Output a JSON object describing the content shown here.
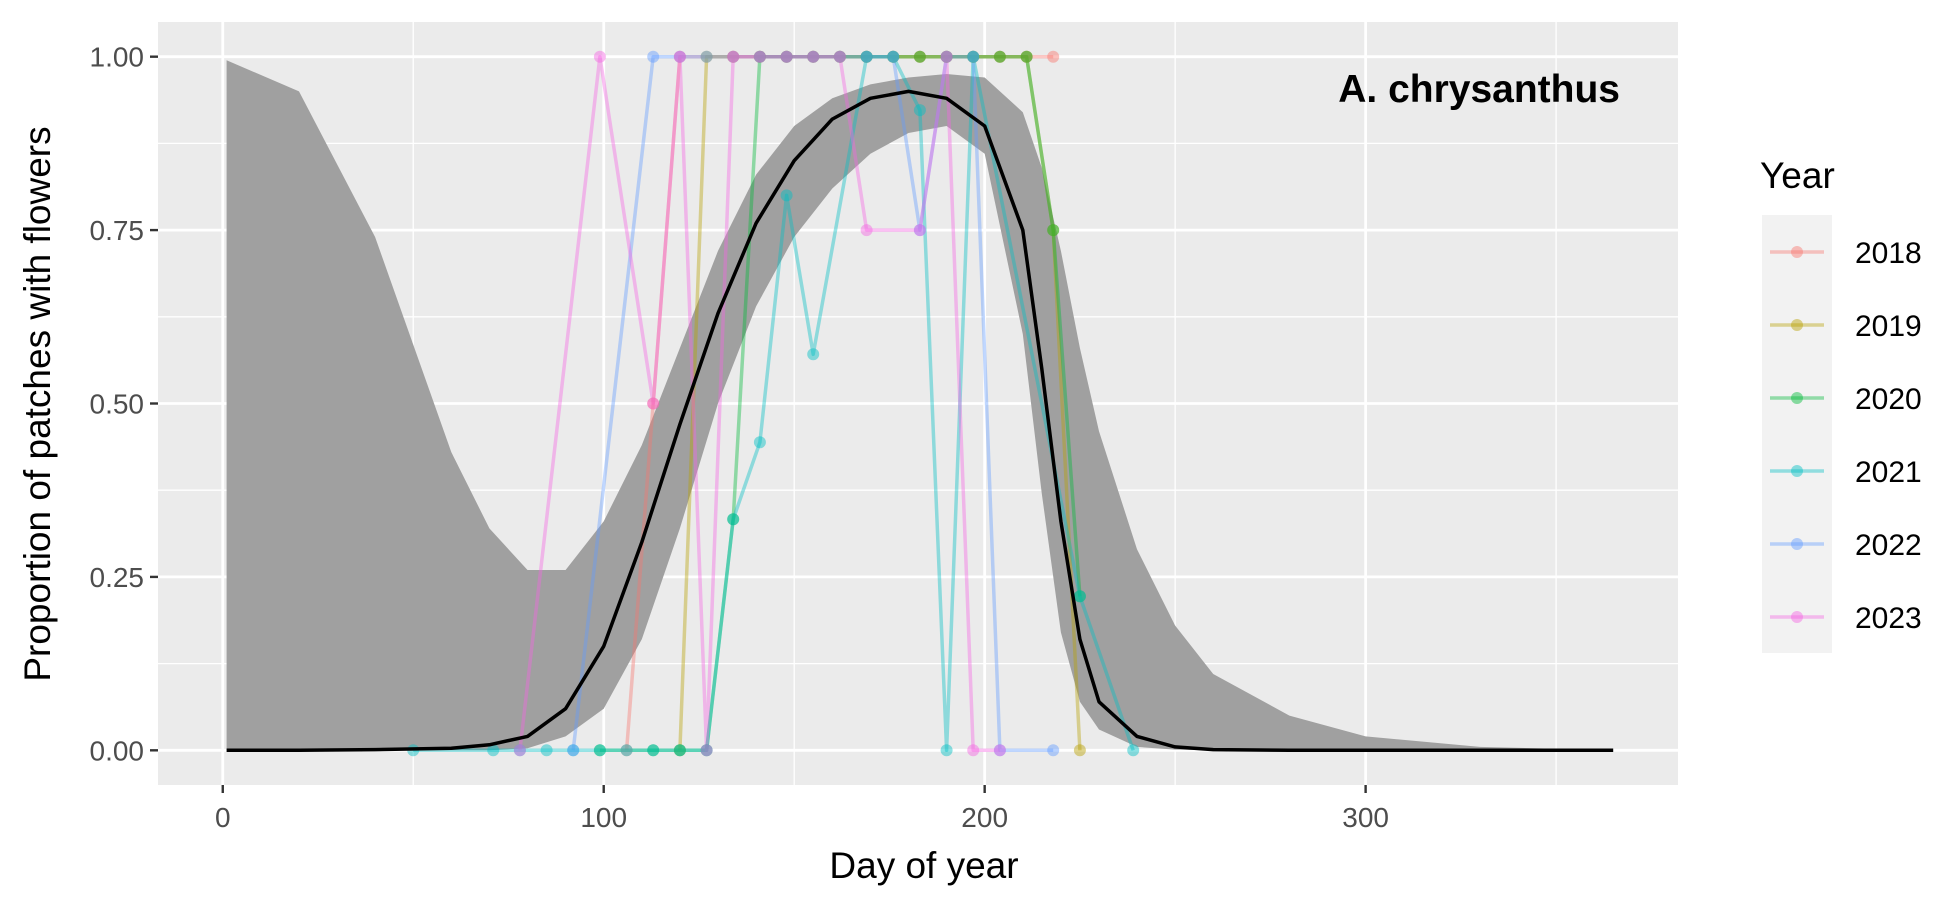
{
  "chart_data": {
    "type": "line",
    "annotation": "A. chrysanthus",
    "xlabel": "Day of year",
    "ylabel": "Proportion of patches with flowers",
    "xlim": [
      -17,
      382
    ],
    "ylim": [
      -0.05,
      1.05
    ],
    "xticks": [
      0,
      100,
      200,
      300
    ],
    "xtick_labels": [
      "0",
      "100",
      "200",
      "300"
    ],
    "yticks": [
      0,
      0.25,
      0.5,
      0.75,
      1
    ],
    "ytick_labels": [
      "0.00",
      "0.25",
      "0.50",
      "0.75",
      "1.00"
    ],
    "grid": true,
    "legend": {
      "title": "Year",
      "position": "right"
    },
    "fit": {
      "label": "",
      "color": "#000000",
      "band_color": "#a0a0a0",
      "x": [
        1,
        20,
        40,
        60,
        70,
        80,
        90,
        100,
        110,
        120,
        130,
        140,
        150,
        160,
        170,
        180,
        190,
        200,
        210,
        215,
        220,
        225,
        230,
        240,
        250,
        260,
        280,
        300,
        330,
        365
      ],
      "y": [
        0.0,
        0.0,
        0.001,
        0.003,
        0.008,
        0.02,
        0.06,
        0.15,
        0.3,
        0.47,
        0.63,
        0.76,
        0.85,
        0.91,
        0.94,
        0.95,
        0.94,
        0.9,
        0.75,
        0.55,
        0.33,
        0.16,
        0.07,
        0.02,
        0.005,
        0.001,
        0.0,
        0.0,
        0.0,
        0.0
      ],
      "lower": [
        0.0,
        0.0,
        0.0,
        0.0,
        0.0,
        0.003,
        0.02,
        0.06,
        0.16,
        0.32,
        0.5,
        0.64,
        0.74,
        0.81,
        0.86,
        0.89,
        0.9,
        0.86,
        0.6,
        0.37,
        0.17,
        0.07,
        0.03,
        0.005,
        0.001,
        0.0,
        0.0,
        0.0,
        0.0,
        0.0
      ],
      "upper": [
        0.995,
        0.95,
        0.74,
        0.43,
        0.32,
        0.26,
        0.26,
        0.33,
        0.44,
        0.58,
        0.72,
        0.83,
        0.9,
        0.94,
        0.96,
        0.97,
        0.975,
        0.97,
        0.92,
        0.84,
        0.72,
        0.58,
        0.46,
        0.29,
        0.18,
        0.11,
        0.05,
        0.02,
        0.005,
        0.0
      ]
    },
    "series": [
      {
        "name": "2018",
        "color": "#F8766D",
        "x": [
          106,
          113,
          120,
          134,
          141,
          148,
          155,
          162,
          169,
          176,
          183,
          190,
          197,
          204,
          211,
          218
        ],
        "y": [
          0,
          0.5,
          1,
          1,
          1,
          1,
          1,
          1,
          1,
          1,
          1,
          1,
          1,
          1,
          1,
          1
        ]
      },
      {
        "name": "2019",
        "color": "#B79F00",
        "x": [
          120,
          127,
          134,
          141,
          148,
          155,
          162,
          169,
          176,
          183,
          190,
          197,
          204,
          211,
          218,
          225
        ],
        "y": [
          0,
          1,
          1,
          1,
          1,
          1,
          1,
          1,
          1,
          1,
          1,
          1,
          1,
          1,
          0.75,
          0
        ]
      },
      {
        "name": "2020",
        "color": "#00BA38",
        "x": [
          99,
          113,
          120,
          127,
          134,
          141,
          148,
          155,
          162,
          169,
          176,
          183,
          190,
          197,
          204,
          211,
          218,
          225
        ],
        "y": [
          0,
          0,
          0,
          0,
          0.333,
          1,
          1,
          1,
          1,
          1,
          1,
          1,
          1,
          1,
          1,
          1,
          0.75,
          0.222
        ]
      },
      {
        "name": "2021",
        "color": "#00BFC4",
        "x": [
          50,
          71,
          78,
          85,
          92,
          99,
          106,
          113,
          120,
          127,
          134,
          141,
          148,
          155,
          169,
          176,
          183,
          190,
          197,
          225,
          239
        ],
        "y": [
          0,
          0,
          0,
          0,
          0,
          0,
          0,
          0,
          0,
          0,
          0.333,
          0.444,
          0.8,
          0.571,
          1,
          1,
          0.923,
          0,
          1,
          0.222,
          0
        ]
      },
      {
        "name": "2022",
        "color": "#619CFF",
        "x": [
          92,
          113,
          120,
          127,
          134,
          141,
          148,
          155,
          162,
          169,
          176,
          183,
          190,
          197,
          204,
          218
        ],
        "y": [
          0,
          1,
          1,
          1,
          1,
          1,
          1,
          1,
          1,
          1,
          1,
          0.75,
          1,
          1,
          0,
          0
        ]
      },
      {
        "name": "2023",
        "color": "#F564E3",
        "x": [
          78,
          99,
          113,
          120,
          127,
          134,
          141,
          148,
          155,
          162,
          169,
          183,
          190,
          197,
          204
        ],
        "y": [
          0,
          1,
          0.5,
          1,
          0,
          1,
          1,
          1,
          1,
          1,
          0.75,
          0.75,
          1,
          0,
          0
        ]
      }
    ]
  }
}
